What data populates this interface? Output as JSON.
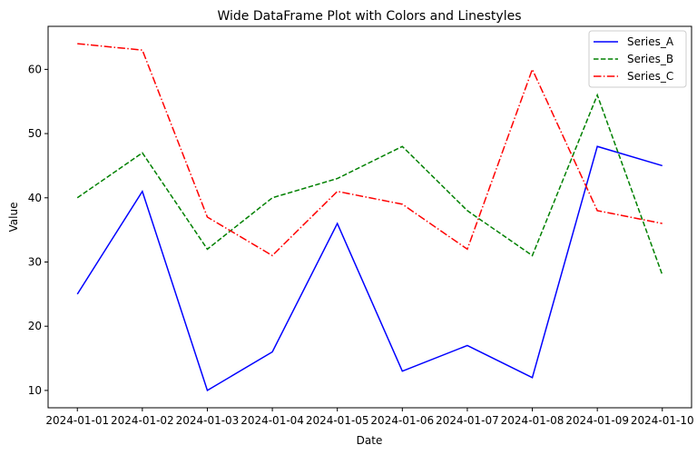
{
  "chart_data": {
    "type": "line",
    "title": "Wide DataFrame Plot with Colors and Linestyles",
    "xlabel": "Date",
    "ylabel": "Value",
    "categories": [
      "2024-01-01",
      "2024-01-02",
      "2024-01-03",
      "2024-01-04",
      "2024-01-05",
      "2024-01-06",
      "2024-01-07",
      "2024-01-08",
      "2024-01-09",
      "2024-01-10"
    ],
    "ylim": [
      7.3,
      66.7
    ],
    "yticks": [
      10,
      20,
      30,
      40,
      50,
      60
    ],
    "grid": false,
    "legend_position": "top-right",
    "series": [
      {
        "name": "Series_A",
        "color": "#0000ff",
        "linestyle": "solid",
        "values": [
          25,
          41,
          10,
          16,
          36,
          13,
          17,
          12,
          48,
          45
        ]
      },
      {
        "name": "Series_B",
        "color": "#008000",
        "linestyle": "dashed",
        "values": [
          40,
          47,
          32,
          40,
          43,
          48,
          38,
          31,
          56,
          28
        ]
      },
      {
        "name": "Series_C",
        "color": "#ff0000",
        "linestyle": "dashdot",
        "values": [
          64,
          63,
          37,
          31,
          41,
          39,
          32,
          60,
          38,
          36
        ]
      }
    ]
  }
}
